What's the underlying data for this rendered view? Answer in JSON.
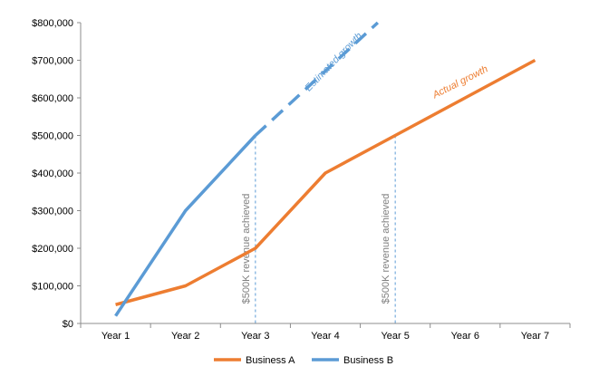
{
  "chart_data": {
    "type": "line",
    "categories": [
      "Year 1",
      "Year 2",
      "Year 3",
      "Year 4",
      "Year 5",
      "Year 6",
      "Year 7"
    ],
    "ylim": [
      0,
      800000
    ],
    "yticks": [
      0,
      100000,
      200000,
      300000,
      400000,
      500000,
      600000,
      700000,
      800000
    ],
    "ytick_labels": [
      "$0",
      "$100,000",
      "$200,000",
      "$300,000",
      "$400,000",
      "$500,000",
      "$600,000",
      "$700,000",
      "$800,000"
    ],
    "series": [
      {
        "name": "Business A",
        "color": "#ED7D31",
        "x": [
          "Year 1",
          "Year 2",
          "Year 3",
          "Year 4",
          "Year 5",
          "Year 6",
          "Year 7"
        ],
        "values": [
          50000,
          100000,
          200000,
          400000,
          500000,
          600000,
          700000
        ]
      },
      {
        "name": "Business B",
        "color": "#5B9BD5",
        "x": [
          "Year 1",
          "Year 2",
          "Year 3"
        ],
        "values": [
          20000,
          300000,
          500000
        ],
        "projection": {
          "x": [
            3,
            4.75
          ],
          "values": [
            500000,
            800000
          ],
          "style": "dashed"
        }
      }
    ],
    "annotations": [
      {
        "text": "Estimated growth",
        "color": "#5B9BD5",
        "x": 4.15,
        "y": 690000
      },
      {
        "text": "Actual growth",
        "color": "#ED7D31",
        "x": 5.95,
        "y": 635000
      }
    ],
    "reference_lines": [
      {
        "x": "Year 3",
        "to_value": 500000,
        "label": "$500K revenue achieved"
      },
      {
        "x": "Year 5",
        "to_value": 500000,
        "label": "$500K revenue achieved"
      }
    ],
    "legend_position": "bottom",
    "grid": false
  }
}
